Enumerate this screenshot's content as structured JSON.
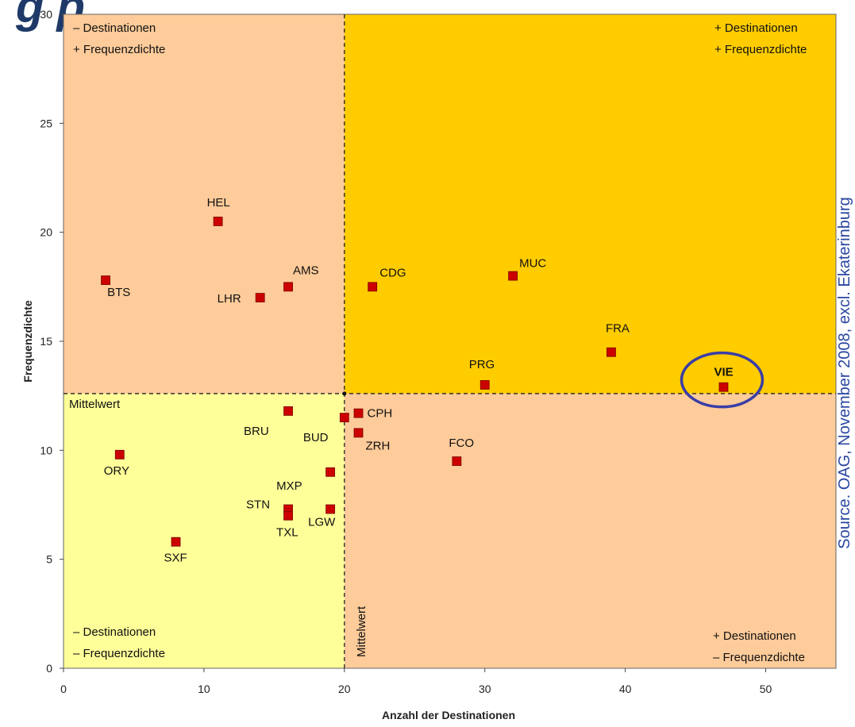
{
  "heading_fragment": "g   p      ,",
  "source_note": "Source. OAG, November 2008, excl. Ekaterinburg",
  "colors": {
    "q_top_left": "#fecb9a",
    "q_top_right": "#ffcc00",
    "q_bottom_left": "#ffff99",
    "q_bottom_right": "#fecb9a",
    "marker": "#cc0000",
    "highlight_circle": "#3a3ea6",
    "source_text": "#2a46a0"
  },
  "quadrant_labels": {
    "top_left": [
      "– Destinationen",
      "+ Frequenzdichte"
    ],
    "top_right": [
      "+ Destinationen",
      "+ Frequenzdichte"
    ],
    "bottom_left": [
      "– Destinationen",
      "– Frequenzdichte"
    ],
    "bottom_right": [
      "+ Destinationen",
      "– Frequenzdichte"
    ]
  },
  "mean_labels": {
    "horizontal": "Mittelwert",
    "vertical": "Mittelwert"
  },
  "chart_data": {
    "type": "scatter",
    "xlabel": "Anzahl der Destinationen",
    "ylabel": "Frequenzdichte",
    "xlim": [
      0,
      55
    ],
    "ylim": [
      0,
      30
    ],
    "xticks": [
      0,
      10,
      20,
      30,
      40,
      50
    ],
    "yticks": [
      0,
      5,
      10,
      15,
      20,
      25,
      30
    ],
    "mean_x": 20,
    "mean_y": 12.6,
    "grid": false,
    "highlight": "VIE",
    "points": [
      {
        "label": "HEL",
        "x": 11,
        "y": 20.5
      },
      {
        "label": "BTS",
        "x": 3,
        "y": 17.8
      },
      {
        "label": "AMS",
        "x": 16,
        "y": 17.5
      },
      {
        "label": "LHR",
        "x": 14,
        "y": 17.0
      },
      {
        "label": "CDG",
        "x": 22,
        "y": 17.5
      },
      {
        "label": "MUC",
        "x": 32,
        "y": 18.0
      },
      {
        "label": "FRA",
        "x": 39,
        "y": 14.5
      },
      {
        "label": "PRG",
        "x": 30,
        "y": 13.0
      },
      {
        "label": "VIE",
        "x": 47,
        "y": 12.9
      },
      {
        "label": "BRU",
        "x": 16,
        "y": 11.8
      },
      {
        "label": "BUD",
        "x": 20,
        "y": 11.5
      },
      {
        "label": "CPH",
        "x": 21,
        "y": 11.7
      },
      {
        "label": "ZRH",
        "x": 21,
        "y": 10.8
      },
      {
        "label": "FCO",
        "x": 28,
        "y": 9.5
      },
      {
        "label": "ORY",
        "x": 4,
        "y": 9.8
      },
      {
        "label": "MXP",
        "x": 19,
        "y": 9.0
      },
      {
        "label": "STN",
        "x": 16,
        "y": 7.3
      },
      {
        "label": "TXL",
        "x": 16,
        "y": 7.0
      },
      {
        "label": "LGW",
        "x": 19,
        "y": 7.3
      },
      {
        "label": "SXF",
        "x": 8,
        "y": 5.8
      }
    ]
  }
}
